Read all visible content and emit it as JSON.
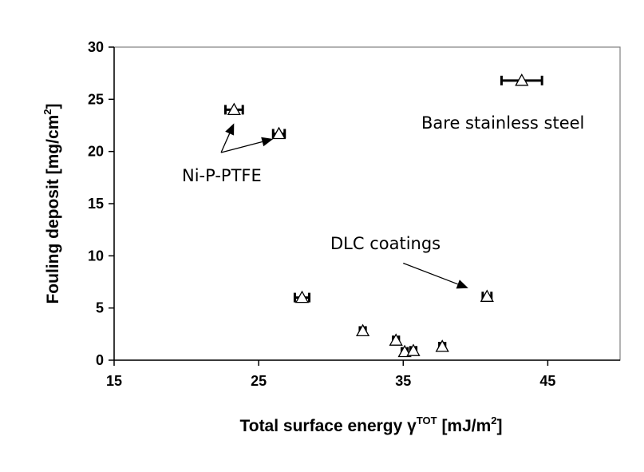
{
  "chart_data": {
    "type": "scatter",
    "xlabel": {
      "main": "Total surface energy γ",
      "sup": "TOT",
      "unit": " [mJ/m",
      "unit_sup": "2",
      "end": "]"
    },
    "ylabel": {
      "main": "Fouling deposit [mg/cm",
      "sup": "2",
      "end": "]"
    },
    "xlim": [
      15,
      50
    ],
    "ylim": [
      0,
      30
    ],
    "x_ticks": [
      15,
      25,
      35,
      45
    ],
    "y_ticks": [
      0,
      5,
      10,
      15,
      20,
      25,
      30
    ],
    "grid": false,
    "marker": "open-triangle",
    "points": [
      {
        "x": 23.3,
        "y": 24.0,
        "x_err": 0.6,
        "y_err": 0.4
      },
      {
        "x": 26.4,
        "y": 21.7,
        "x_err": 0.4,
        "y_err": 0.5
      },
      {
        "x": 43.2,
        "y": 26.8,
        "x_err": 1.4,
        "y_err": 0.3
      },
      {
        "x": 28.0,
        "y": 6.0,
        "x_err": 0.5,
        "y_err": 0.4
      },
      {
        "x": 40.8,
        "y": 6.1,
        "x_err": 0.3,
        "y_err": 0.4
      },
      {
        "x": 32.2,
        "y": 2.8,
        "x_err": 0.2,
        "y_err": 0.3
      },
      {
        "x": 34.5,
        "y": 1.9,
        "x_err": 0.2,
        "y_err": 0.3
      },
      {
        "x": 35.1,
        "y": 0.8,
        "x_err": 0.2,
        "y_err": 0.3
      },
      {
        "x": 35.7,
        "y": 0.9,
        "x_err": 0.2,
        "y_err": 0.3
      },
      {
        "x": 37.7,
        "y": 1.3,
        "x_err": 0.2,
        "y_err": 0.3
      }
    ],
    "annotations": {
      "bare": "Bare stainless steel",
      "nip": "Ni-P-PTFE",
      "dlc": "DLC coatings"
    },
    "arrows": [
      {
        "label": "nip",
        "from": [
          22.4,
          19.9
        ],
        "to": [
          23.3,
          22.7
        ]
      },
      {
        "label": "nip",
        "from": [
          22.4,
          19.9
        ],
        "to": [
          26.0,
          21.2
        ]
      },
      {
        "label": "dlc",
        "from": [
          35.0,
          9.3
        ],
        "to": [
          39.5,
          6.9
        ]
      }
    ]
  }
}
